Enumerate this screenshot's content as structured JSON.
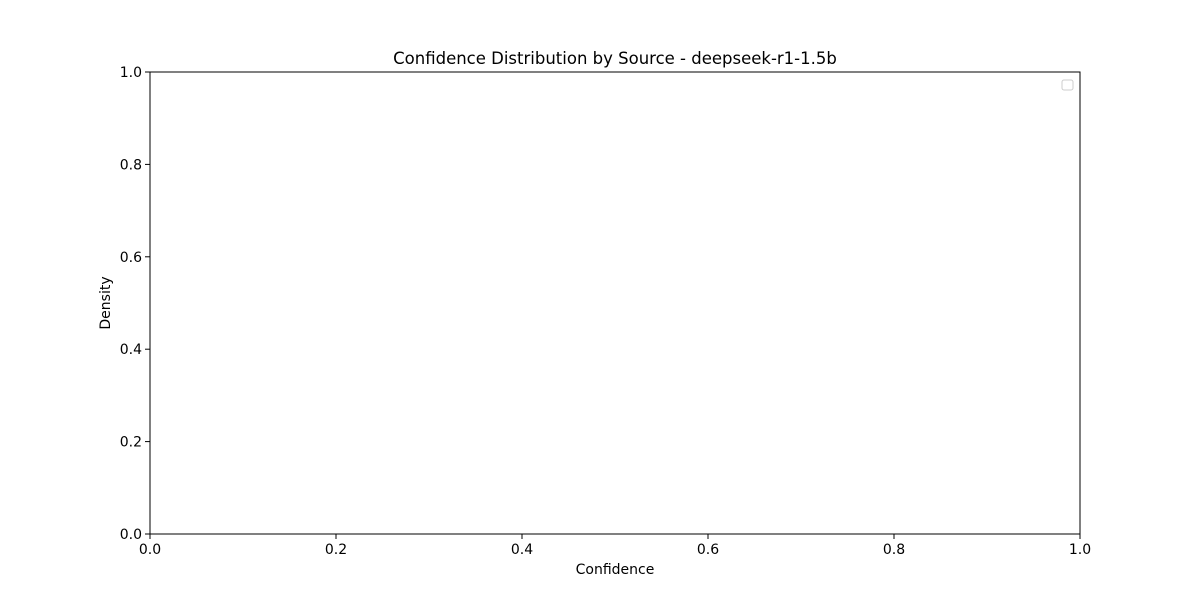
{
  "chart_data": {
    "type": "line",
    "title": "Confidence Distribution by Source - deepseek-r1-1.5b",
    "xlabel": "Confidence",
    "ylabel": "Density",
    "xlim": [
      0.0,
      1.0
    ],
    "ylim": [
      0.0,
      1.0
    ],
    "xticks": [
      "0.0",
      "0.2",
      "0.4",
      "0.6",
      "0.8",
      "1.0"
    ],
    "yticks": [
      "0.0",
      "0.2",
      "0.4",
      "0.6",
      "0.8",
      "1.0"
    ],
    "grid": false,
    "legend": {
      "placement": "top-right",
      "entries": []
    },
    "series": []
  }
}
